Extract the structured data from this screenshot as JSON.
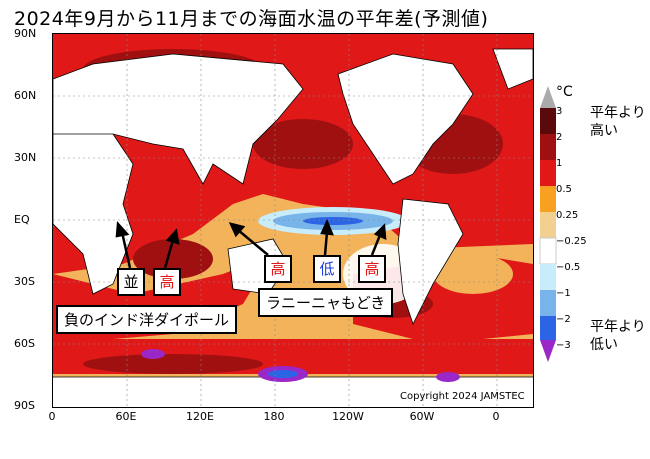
{
  "title": "2024年9月から11月までの海面水温の平年差(予測値)",
  "lat_labels": [
    "90N",
    "60N",
    "30N",
    "EQ",
    "30S",
    "60S",
    "90S"
  ],
  "lon_labels": [
    "0",
    "60E",
    "120E",
    "180",
    "120W",
    "60W",
    "0"
  ],
  "copyright": "Copyright 2024 JAMSTEC",
  "annotations": {
    "nami": "並",
    "taka1": "高",
    "taka2": "高",
    "tei": "低",
    "taka3": "高",
    "iod": "負のインド洋ダイポール",
    "lanina": "ラニーニャもどき"
  },
  "colorbar": {
    "unit": "°C",
    "ticks": [
      "3",
      "2",
      "1",
      "0.5",
      "0.25",
      "−0.25",
      "−0.5",
      "−1",
      "−2",
      "−3"
    ],
    "colors": [
      "#5a0a0a",
      "#a01010",
      "#e01818",
      "#f2b35b",
      "#ffffff",
      "#c8ecfa",
      "#78b4ea",
      "#2c64e6",
      "#1010c8",
      "#9a28c8"
    ],
    "above_label": "平年より\n高い",
    "below_label": "平年より\n低い"
  }
}
